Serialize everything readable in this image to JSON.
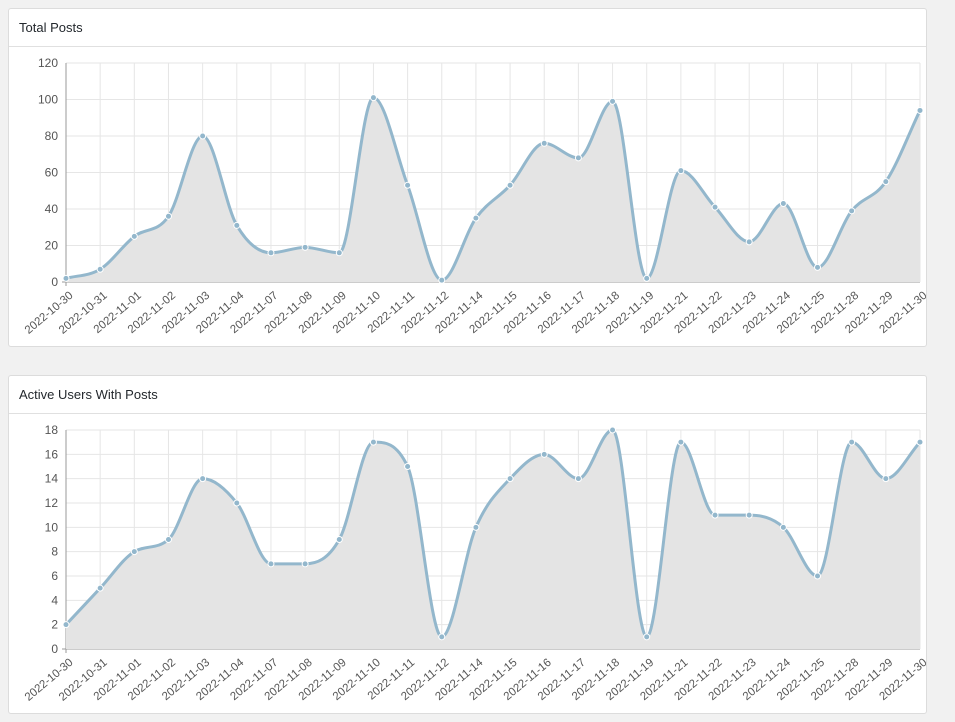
{
  "colors": {
    "line": "#93b7cc",
    "fill": "#e4e4e4",
    "point": "#93b7cc",
    "grid": "#e6e6e6"
  },
  "panels": [
    {
      "title": "Total Posts"
    },
    {
      "title": "Active Users With Posts"
    }
  ],
  "chart_data": [
    {
      "type": "area",
      "title": "Total Posts",
      "xlabel": "",
      "ylabel": "",
      "grid": true,
      "ylim": [
        0,
        120
      ],
      "yticks": [
        0,
        20,
        40,
        60,
        80,
        100,
        120
      ],
      "categories": [
        "2022-10-30",
        "2022-10-31",
        "2022-11-01",
        "2022-11-02",
        "2022-11-03",
        "2022-11-04",
        "2022-11-07",
        "2022-11-08",
        "2022-11-09",
        "2022-11-10",
        "2022-11-11",
        "2022-11-12",
        "2022-11-14",
        "2022-11-15",
        "2022-11-16",
        "2022-11-17",
        "2022-11-18",
        "2022-11-19",
        "2022-11-21",
        "2022-11-22",
        "2022-11-23",
        "2022-11-24",
        "2022-11-25",
        "2022-11-28",
        "2022-11-29",
        "2022-11-30"
      ],
      "series": [
        {
          "values": [
            2,
            7,
            25,
            36,
            80,
            31,
            16,
            19,
            16,
            101,
            53,
            1,
            35,
            53,
            76,
            68,
            99,
            2,
            61,
            41,
            22,
            43,
            8,
            39,
            55,
            94
          ]
        }
      ]
    },
    {
      "type": "area",
      "title": "Active Users With Posts",
      "xlabel": "",
      "ylabel": "",
      "grid": true,
      "ylim": [
        0,
        18
      ],
      "yticks": [
        0,
        2,
        4,
        6,
        8,
        10,
        12,
        14,
        16,
        18
      ],
      "categories": [
        "2022-10-30",
        "2022-10-31",
        "2022-11-01",
        "2022-11-02",
        "2022-11-03",
        "2022-11-04",
        "2022-11-07",
        "2022-11-08",
        "2022-11-09",
        "2022-11-10",
        "2022-11-11",
        "2022-11-12",
        "2022-11-14",
        "2022-11-15",
        "2022-11-16",
        "2022-11-17",
        "2022-11-18",
        "2022-11-19",
        "2022-11-21",
        "2022-11-22",
        "2022-11-23",
        "2022-11-24",
        "2022-11-25",
        "2022-11-28",
        "2022-11-29",
        "2022-11-30"
      ],
      "series": [
        {
          "values": [
            2,
            5,
            8,
            9,
            14,
            12,
            7,
            7,
            9,
            17,
            15,
            1,
            10,
            14,
            16,
            14,
            18,
            1,
            17,
            11,
            11,
            10,
            6,
            17,
            14,
            17
          ]
        }
      ]
    }
  ]
}
